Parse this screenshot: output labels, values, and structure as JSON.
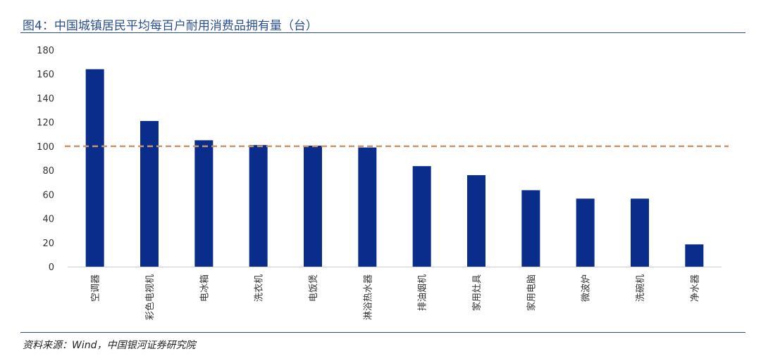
{
  "title": "图4：中国城镇居民平均每百户耐用消费品拥有量（台）",
  "source": "资料来源：Wind，中国银河证券研究院",
  "colors": {
    "bar": "#0a2d8c",
    "reference_line": "#c8956a",
    "title": "#2a4f8f",
    "axis": "#cccccc"
  },
  "chart_data": {
    "type": "bar",
    "categories": [
      "空调器",
      "彩色电视机",
      "电冰箱",
      "洗衣机",
      "电饭煲",
      "淋浴热水器",
      "排油烟机",
      "家用灶具",
      "家用电脑",
      "微波炉",
      "洗碗机",
      "净水器"
    ],
    "values": [
      164,
      121,
      105,
      101,
      100.5,
      99,
      83.5,
      76,
      63.5,
      56.5,
      56.5,
      18.5
    ],
    "yticks": [
      0,
      20,
      40,
      60,
      80,
      100,
      120,
      140,
      160,
      180
    ],
    "ylim": [
      0,
      180
    ],
    "reference_line": {
      "y": 100,
      "style": "dashed"
    },
    "grid": false,
    "legend": "none",
    "xlabel": "",
    "ylabel": ""
  }
}
